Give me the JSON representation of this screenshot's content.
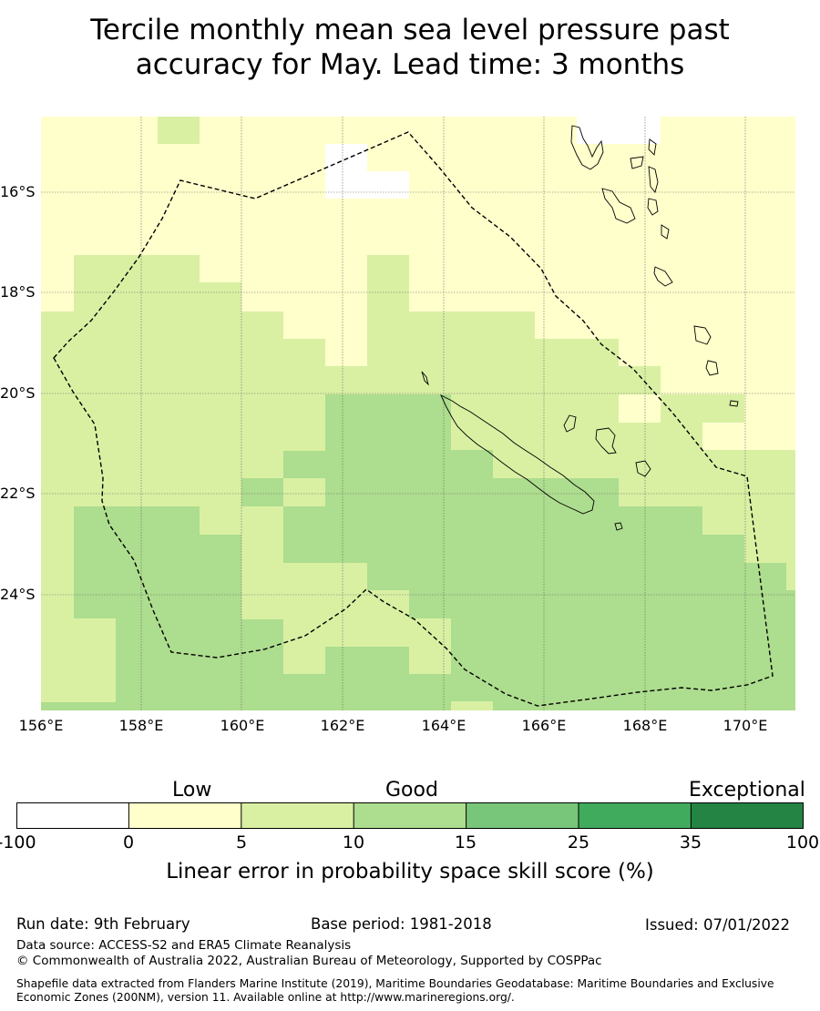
{
  "title": {
    "line1": "Tercile monthly mean sea level pressure past",
    "line2": "accuracy for May. Lead time: 3 months"
  },
  "map": {
    "lat_labels": [
      "16°S",
      "18°S",
      "20°S",
      "22°S",
      "24°S"
    ],
    "lon_labels": [
      "156°E",
      "158°E",
      "160°E",
      "162°E",
      "164°E",
      "166°E",
      "168°E",
      "170°E"
    ],
    "extent_degrees": {
      "lon": [
        156,
        171
      ],
      "lat": [
        -14.5,
        -26.3
      ]
    },
    "features": [
      "skill-score-grid",
      "maritime-boundary-dashed",
      "new-caledonia-coastline",
      "vanuatu-coastline",
      "graticule"
    ]
  },
  "colorbar": {
    "categories": [
      "Low",
      "Good",
      "Exceptional"
    ],
    "ticks": [
      "-100",
      "0",
      "5",
      "10",
      "15",
      "25",
      "35",
      "100"
    ],
    "colors": [
      "#ffffff",
      "#ffffcc",
      "#d9f0a3",
      "#addd8e",
      "#78c679",
      "#41ab5d",
      "#238443"
    ],
    "title": "Linear error in probability space skill score (%)"
  },
  "footer": {
    "run_date": "Run date: 9th February",
    "base_period": "Base period: 1981-2018",
    "issued": "Issued: 07/01/2022",
    "data_source": "Data source: ACCESS-S2 and ERA5 Climate Reanalysis",
    "copyright": "© Commonwealth of Australia 2022, Australian Bureau of Meteorology, Supported by COSPPac",
    "shapefile": "Shapefile data extracted from Flanders Marine Institute (2019), Maritime Boundaries Geodatabase: Maritime Boundaries and Exclusive Economic Zones (200NM), version 11. Available online at http://www.marineregions.org/."
  }
}
